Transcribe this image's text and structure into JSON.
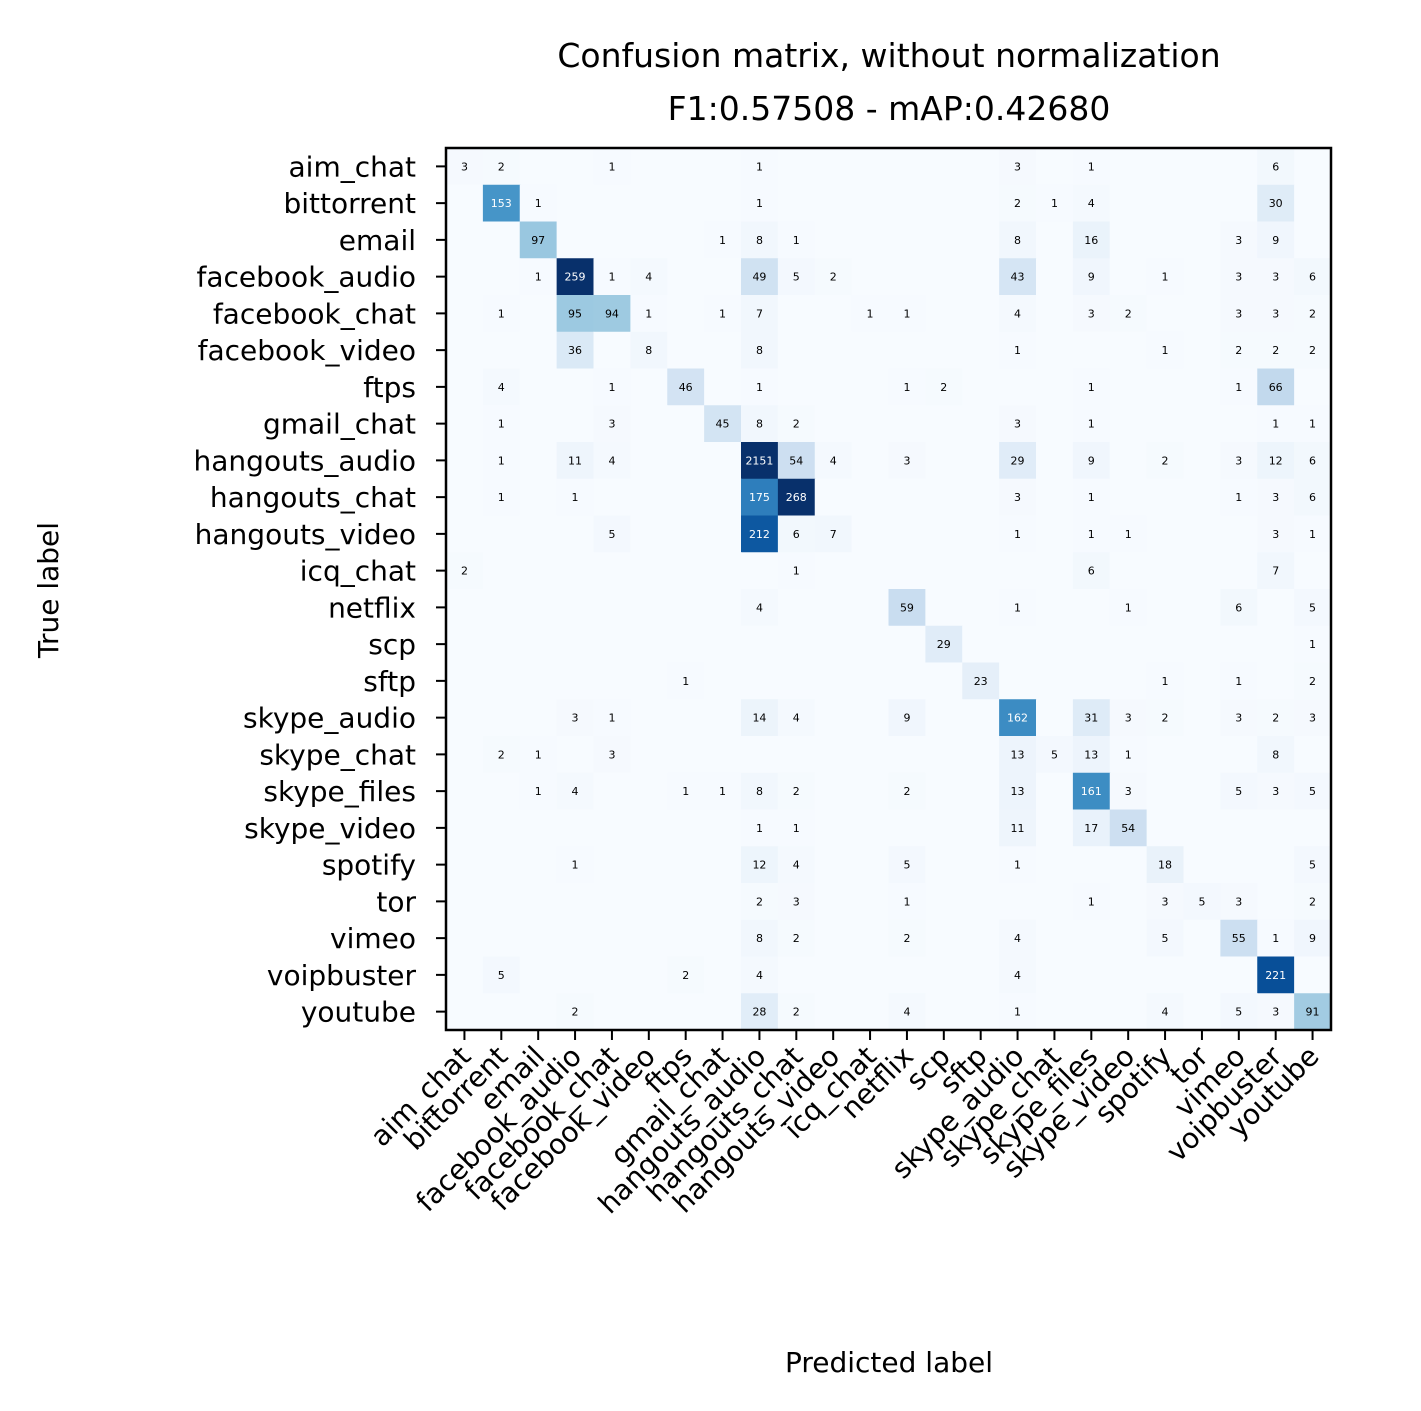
{
  "chart_data": {
    "type": "heatmap",
    "title": [
      "Confusion matrix, without normalization",
      "F1:0.57508 - mAP:0.42680"
    ],
    "xlabel": "Predicted label",
    "ylabel": "True label",
    "colormap": "Blues",
    "colors": {
      "low": "#f7fbff",
      "high": "#08306b",
      "text_light": "#ffffff",
      "text_dark": "#000000"
    },
    "color_scale_max": 250,
    "labels": [
      "aim_chat",
      "bittorrent",
      "email",
      "facebook_audio",
      "facebook_chat",
      "facebook_video",
      "ftps",
      "gmail_chat",
      "hangouts_audio",
      "hangouts_chat",
      "hangouts_video",
      "icq_chat",
      "netflix",
      "scp",
      "sftp",
      "skype_audio",
      "skype_chat",
      "skype_files",
      "skype_video",
      "spotify",
      "tor",
      "vimeo",
      "voipbuster",
      "youtube"
    ],
    "matrix": [
      [
        3,
        2,
        0,
        0,
        1,
        0,
        0,
        0,
        1,
        0,
        0,
        0,
        0,
        0,
        0,
        3,
        0,
        1,
        0,
        0,
        0,
        0,
        6,
        0
      ],
      [
        0,
        153,
        1,
        0,
        0,
        0,
        0,
        0,
        1,
        0,
        0,
        0,
        0,
        0,
        0,
        2,
        1,
        4,
        0,
        0,
        0,
        0,
        30,
        0
      ],
      [
        0,
        0,
        97,
        0,
        0,
        0,
        0,
        1,
        8,
        1,
        0,
        0,
        0,
        0,
        0,
        8,
        0,
        16,
        0,
        0,
        0,
        3,
        9,
        0
      ],
      [
        0,
        0,
        1,
        259,
        1,
        4,
        0,
        0,
        49,
        5,
        2,
        0,
        0,
        0,
        0,
        43,
        0,
        9,
        0,
        1,
        0,
        3,
        3,
        6
      ],
      [
        0,
        1,
        0,
        95,
        94,
        1,
        0,
        1,
        7,
        0,
        0,
        1,
        1,
        0,
        0,
        4,
        0,
        3,
        2,
        0,
        0,
        3,
        3,
        2
      ],
      [
        0,
        0,
        0,
        36,
        0,
        8,
        0,
        0,
        8,
        0,
        0,
        0,
        0,
        0,
        0,
        1,
        0,
        0,
        0,
        1,
        0,
        2,
        2,
        2
      ],
      [
        0,
        4,
        0,
        0,
        1,
        0,
        46,
        0,
        1,
        0,
        0,
        0,
        1,
        2,
        0,
        0,
        0,
        1,
        0,
        0,
        0,
        1,
        66,
        0
      ],
      [
        0,
        1,
        0,
        0,
        3,
        0,
        0,
        45,
        8,
        2,
        0,
        0,
        0,
        0,
        0,
        3,
        0,
        1,
        0,
        0,
        0,
        0,
        1,
        1
      ],
      [
        0,
        1,
        0,
        11,
        4,
        0,
        0,
        0,
        2151,
        54,
        4,
        0,
        3,
        0,
        0,
        29,
        0,
        9,
        0,
        2,
        0,
        3,
        12,
        6
      ],
      [
        0,
        1,
        0,
        1,
        0,
        0,
        0,
        0,
        175,
        268,
        0,
        0,
        0,
        0,
        0,
        3,
        0,
        1,
        0,
        0,
        0,
        1,
        3,
        6
      ],
      [
        0,
        0,
        0,
        0,
        5,
        0,
        0,
        0,
        212,
        6,
        7,
        0,
        0,
        0,
        0,
        1,
        0,
        1,
        1,
        0,
        0,
        0,
        3,
        1
      ],
      [
        2,
        0,
        0,
        0,
        0,
        0,
        0,
        0,
        0,
        1,
        0,
        0,
        0,
        0,
        0,
        0,
        0,
        6,
        0,
        0,
        0,
        0,
        7,
        0
      ],
      [
        0,
        0,
        0,
        0,
        0,
        0,
        0,
        0,
        4,
        0,
        0,
        0,
        59,
        0,
        0,
        1,
        0,
        0,
        1,
        0,
        0,
        6,
        0,
        5
      ],
      [
        0,
        0,
        0,
        0,
        0,
        0,
        0,
        0,
        0,
        0,
        0,
        0,
        0,
        29,
        0,
        0,
        0,
        0,
        0,
        0,
        0,
        0,
        0,
        1
      ],
      [
        0,
        0,
        0,
        0,
        0,
        0,
        1,
        0,
        0,
        0,
        0,
        0,
        0,
        0,
        23,
        0,
        0,
        0,
        0,
        1,
        0,
        1,
        0,
        2
      ],
      [
        0,
        0,
        0,
        3,
        1,
        0,
        0,
        0,
        14,
        4,
        0,
        0,
        9,
        0,
        0,
        162,
        0,
        31,
        3,
        2,
        0,
        3,
        2,
        3
      ],
      [
        0,
        2,
        1,
        0,
        3,
        0,
        0,
        0,
        0,
        0,
        0,
        0,
        0,
        0,
        0,
        13,
        5,
        13,
        1,
        0,
        0,
        0,
        8,
        0
      ],
      [
        0,
        0,
        1,
        4,
        0,
        0,
        1,
        1,
        8,
        2,
        0,
        0,
        2,
        0,
        0,
        13,
        0,
        161,
        3,
        0,
        0,
        5,
        3,
        5
      ],
      [
        0,
        0,
        0,
        0,
        0,
        0,
        0,
        0,
        1,
        1,
        0,
        0,
        0,
        0,
        0,
        11,
        0,
        17,
        54,
        0,
        0,
        0,
        0,
        0
      ],
      [
        0,
        0,
        0,
        1,
        0,
        0,
        0,
        0,
        12,
        4,
        0,
        0,
        5,
        0,
        0,
        1,
        0,
        0,
        0,
        18,
        0,
        0,
        0,
        5
      ],
      [
        0,
        0,
        0,
        0,
        0,
        0,
        0,
        0,
        2,
        3,
        0,
        0,
        1,
        0,
        0,
        0,
        0,
        1,
        0,
        3,
        5,
        3,
        0,
        2
      ],
      [
        0,
        0,
        0,
        0,
        0,
        0,
        0,
        0,
        8,
        2,
        0,
        0,
        2,
        0,
        0,
        4,
        0,
        0,
        0,
        5,
        0,
        55,
        1,
        9
      ],
      [
        0,
        5,
        0,
        0,
        0,
        0,
        2,
        0,
        4,
        0,
        0,
        0,
        0,
        0,
        0,
        4,
        0,
        0,
        0,
        0,
        0,
        0,
        221,
        0
      ],
      [
        0,
        0,
        0,
        2,
        0,
        0,
        0,
        0,
        28,
        2,
        0,
        0,
        4,
        0,
        0,
        1,
        0,
        0,
        0,
        4,
        0,
        5,
        3,
        91
      ]
    ]
  }
}
